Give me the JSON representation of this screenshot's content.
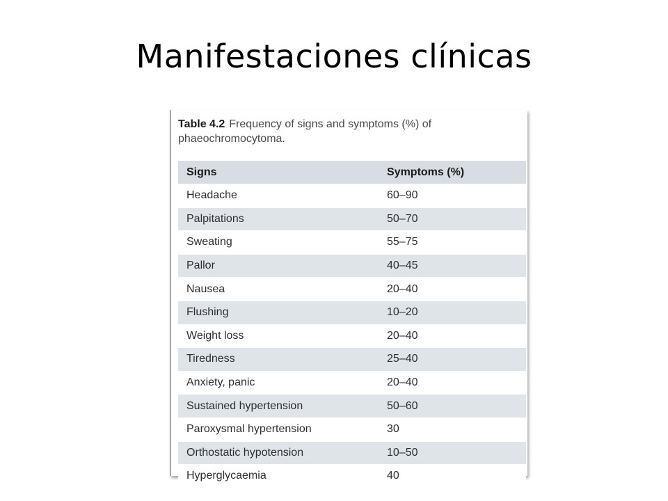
{
  "slide": {
    "title": "Manifestaciones clínicas"
  },
  "table": {
    "caption_label": "Table 4.2",
    "caption_text": "Frequency of signs and symptoms (%) of phaeochromocytoma.",
    "headers": [
      "Signs",
      "Symptoms (%)"
    ],
    "rows": [
      {
        "sign": "Headache",
        "value": "60–90"
      },
      {
        "sign": "Palpitations",
        "value": "50–70"
      },
      {
        "sign": "Sweating",
        "value": "55–75"
      },
      {
        "sign": "Pallor",
        "value": "40–45"
      },
      {
        "sign": "Nausea",
        "value": "20–40"
      },
      {
        "sign": "Flushing",
        "value": "10–20"
      },
      {
        "sign": "Weight loss",
        "value": "20–40"
      },
      {
        "sign": "Tiredness",
        "value": "25–40"
      },
      {
        "sign": "Anxiety, panic",
        "value": "20–40"
      },
      {
        "sign": "Sustained hypertension",
        "value": "50–60"
      },
      {
        "sign": "Paroxysmal hypertension",
        "value": "30"
      },
      {
        "sign": "Orthostatic hypotension",
        "value": "10–50"
      },
      {
        "sign": "Hyperglycaemia",
        "value": "40"
      }
    ]
  },
  "colors": {
    "header_band": "#d7dde3",
    "stripe": "#dfe4e9",
    "text": "#2e2e2e"
  }
}
